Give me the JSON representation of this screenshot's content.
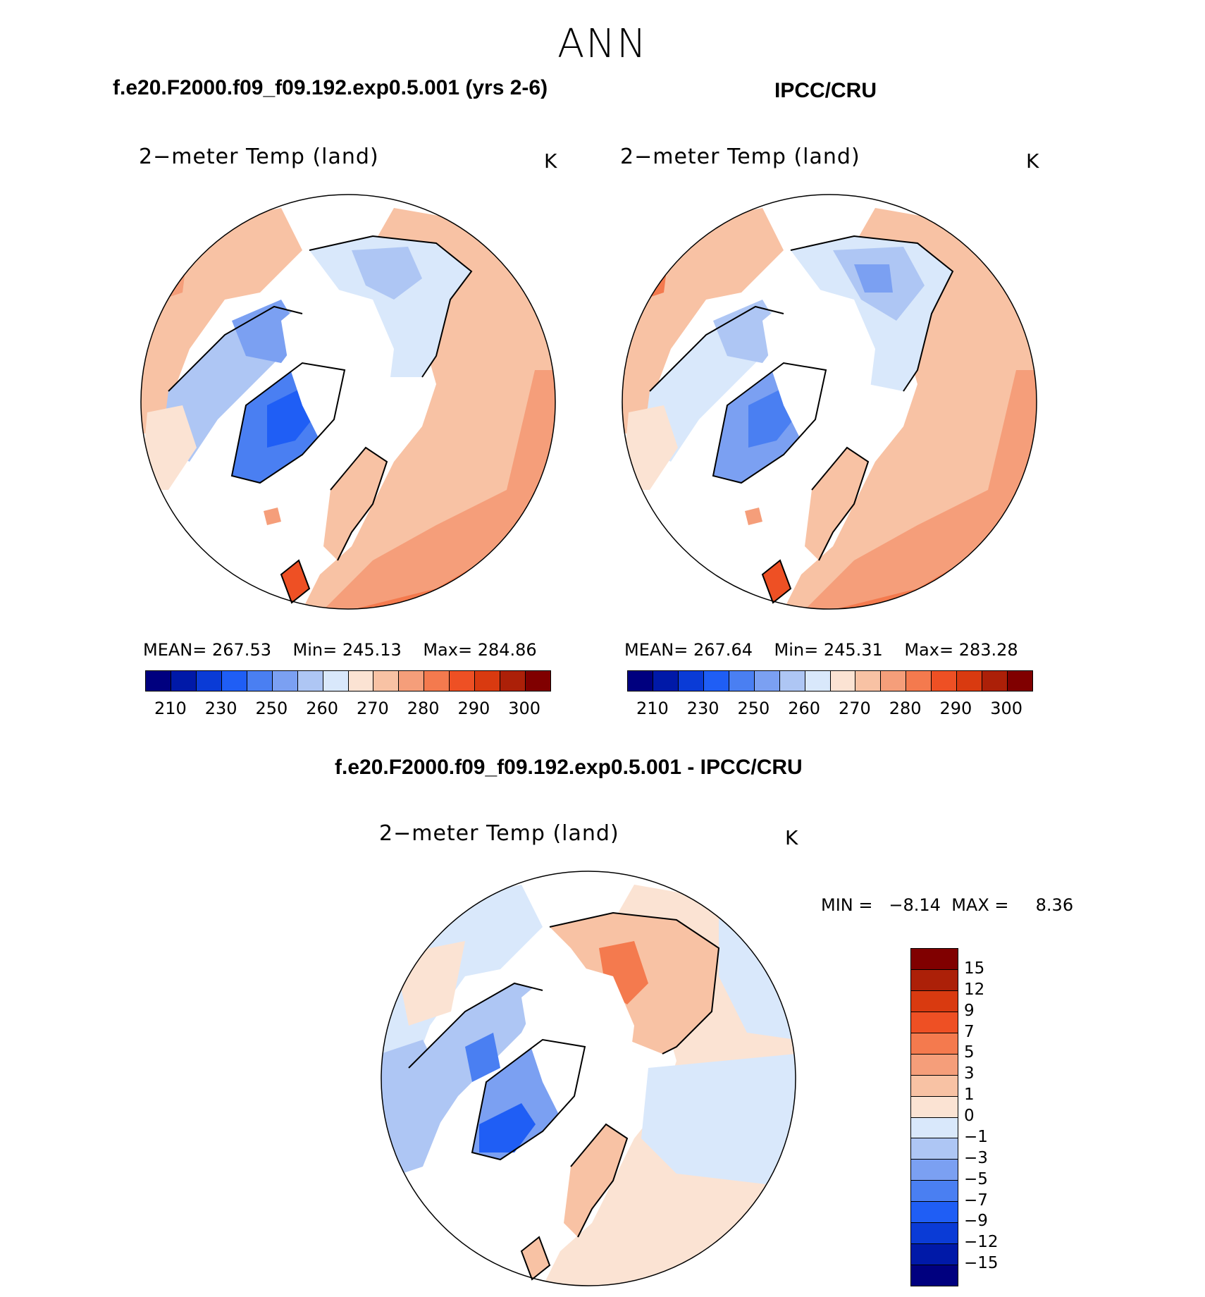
{
  "title": "ANN",
  "panels": [
    {
      "title": "f.e20.F2000.f09_f09.192.exp0.5.001 (yrs 2-6)",
      "variable": "2−meter Temp (land)",
      "units": "K",
      "stats": {
        "mean_label": "MEAN=",
        "mean": "267.53",
        "min_label": "Min=",
        "min": "245.13",
        "max_label": "Max=",
        "max": "284.86"
      },
      "colorbar_ticks": [
        "210",
        "230",
        "250",
        "260",
        "270",
        "280",
        "290",
        "300"
      ]
    },
    {
      "title": "IPCC/CRU",
      "variable": "2−meter Temp (land)",
      "units": "K",
      "stats": {
        "mean_label": "MEAN=",
        "mean": "267.64",
        "min_label": "Min=",
        "min": "245.31",
        "max_label": "Max=",
        "max": "283.28"
      },
      "colorbar_ticks": [
        "210",
        "230",
        "250",
        "260",
        "270",
        "280",
        "290",
        "300"
      ]
    },
    {
      "title": "f.e20.F2000.f09_f09.192.exp0.5.001 - IPCC/CRU",
      "variable": "2−meter Temp (land)",
      "units": "K",
      "stats": {
        "min_label": "MIN =",
        "min": "−8.14",
        "max_label": "MAX =",
        "max": "8.36"
      },
      "colorbar_ticks": [
        "15",
        "12",
        "9",
        "7",
        "5",
        "3",
        "1",
        "0",
        "−1",
        "−3",
        "−5",
        "−7",
        "−9",
        "−12",
        "−15"
      ]
    }
  ],
  "colors": {
    "abs_colorbar": [
      "#00007f",
      "#0019a8",
      "#0a3bd6",
      "#1f5ef5",
      "#4a7ff2",
      "#7ba0f2",
      "#aec6f4",
      "#d9e8fb",
      "#fbe3d3",
      "#f8c2a4",
      "#f59e7a",
      "#f47a4e",
      "#ee5024",
      "#d93a10",
      "#ac2008",
      "#800000"
    ],
    "diff_colorbar": [
      "#800000",
      "#ac2008",
      "#d93a10",
      "#ee5024",
      "#f47a4e",
      "#f59e7a",
      "#f8c2a4",
      "#fbe3d3",
      "#d9e8fb",
      "#aec6f4",
      "#7ba0f2",
      "#4a7ff2",
      "#1f5ef5",
      "#0a3bd6",
      "#0019a8",
      "#00007f"
    ]
  }
}
